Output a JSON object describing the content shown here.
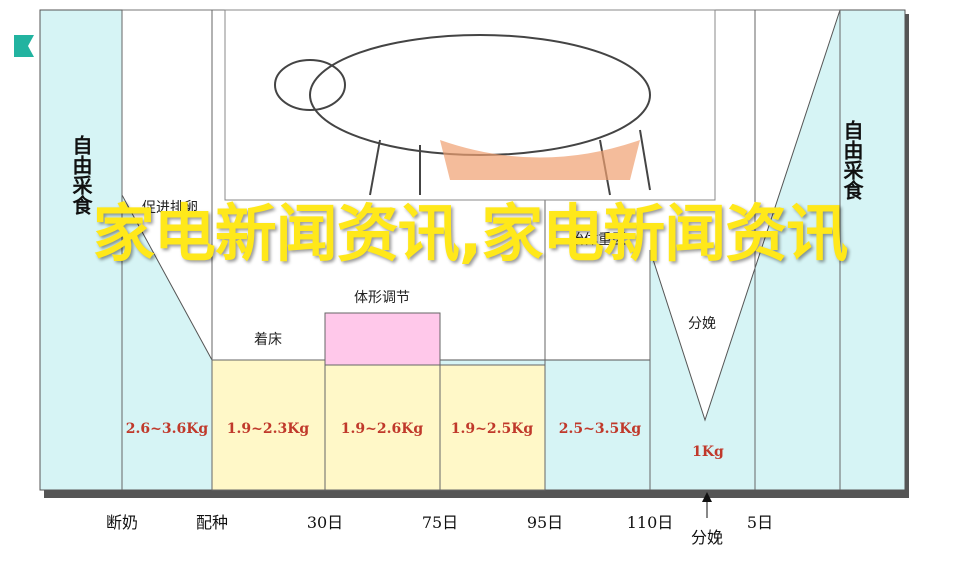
{
  "title": "家电新闻资讯,家电新闻资讯",
  "side_labels": [
    "自由采食",
    "自由采食"
  ],
  "stages": [
    "促进排卵",
    "着床",
    "体形调节",
    "胎体重区",
    "分娩"
  ],
  "weights": [
    "2.6~3.6Kg",
    "1.9~2.3Kg",
    "1.9~2.6Kg",
    "1.9~2.5Kg",
    "2.5~3.5Kg",
    "1Kg"
  ],
  "timeline": [
    "断奶",
    "配种",
    "30日",
    "75日",
    "95日",
    "110日",
    "分娩",
    "5日"
  ]
}
